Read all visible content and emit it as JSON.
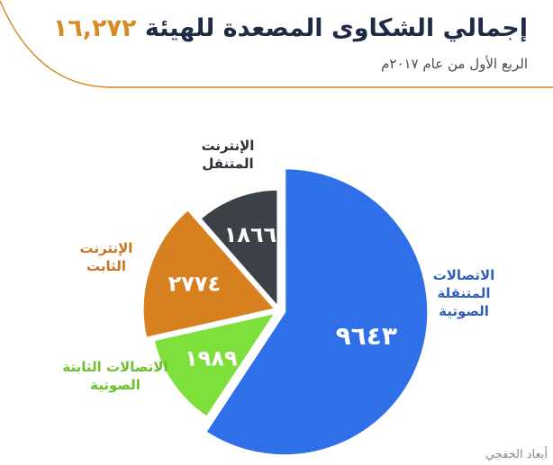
{
  "header": {
    "title": "إجمالي الشكاوى المصعدة للهيئة",
    "total": "١٦,٢٧٢",
    "subtitle": "الربع الأول من عام ٢٠١٧م"
  },
  "chart_data": {
    "type": "pie",
    "title": "إجمالي الشكاوى المصعدة للهيئة ١٦,٢٧٢",
    "subtitle": "الربع الأول من عام ٢٠١٧م",
    "slices": [
      {
        "label": "الاتصالات المتنقلة الصوتية",
        "value": 9643,
        "value_label": "٩٦٤٣",
        "color": "#2f6fe8",
        "label_color": "#2f5fb8"
      },
      {
        "label": "الاتصالات الثابتة الصوتية",
        "value": 1989,
        "value_label": "١٩٨٩",
        "color": "#7ee03a",
        "label_color": "#6cc12a"
      },
      {
        "label": "الإنترنت الثابت",
        "value": 2774,
        "value_label": "٢٧٧٤",
        "color": "#d7801f",
        "label_color": "#c9761d"
      },
      {
        "label": "الإنترنت المتنقل",
        "value": 1866,
        "value_label": "١٨٦٦",
        "color": "#3c4147",
        "label_color": "#2b2f36"
      }
    ],
    "legend": "none"
  },
  "footer": {
    "credit": "أبعاد الخفجي"
  },
  "colors": {
    "accent": "#d88a26",
    "title": "#1f2a44",
    "header_rule": "#d88a26"
  }
}
